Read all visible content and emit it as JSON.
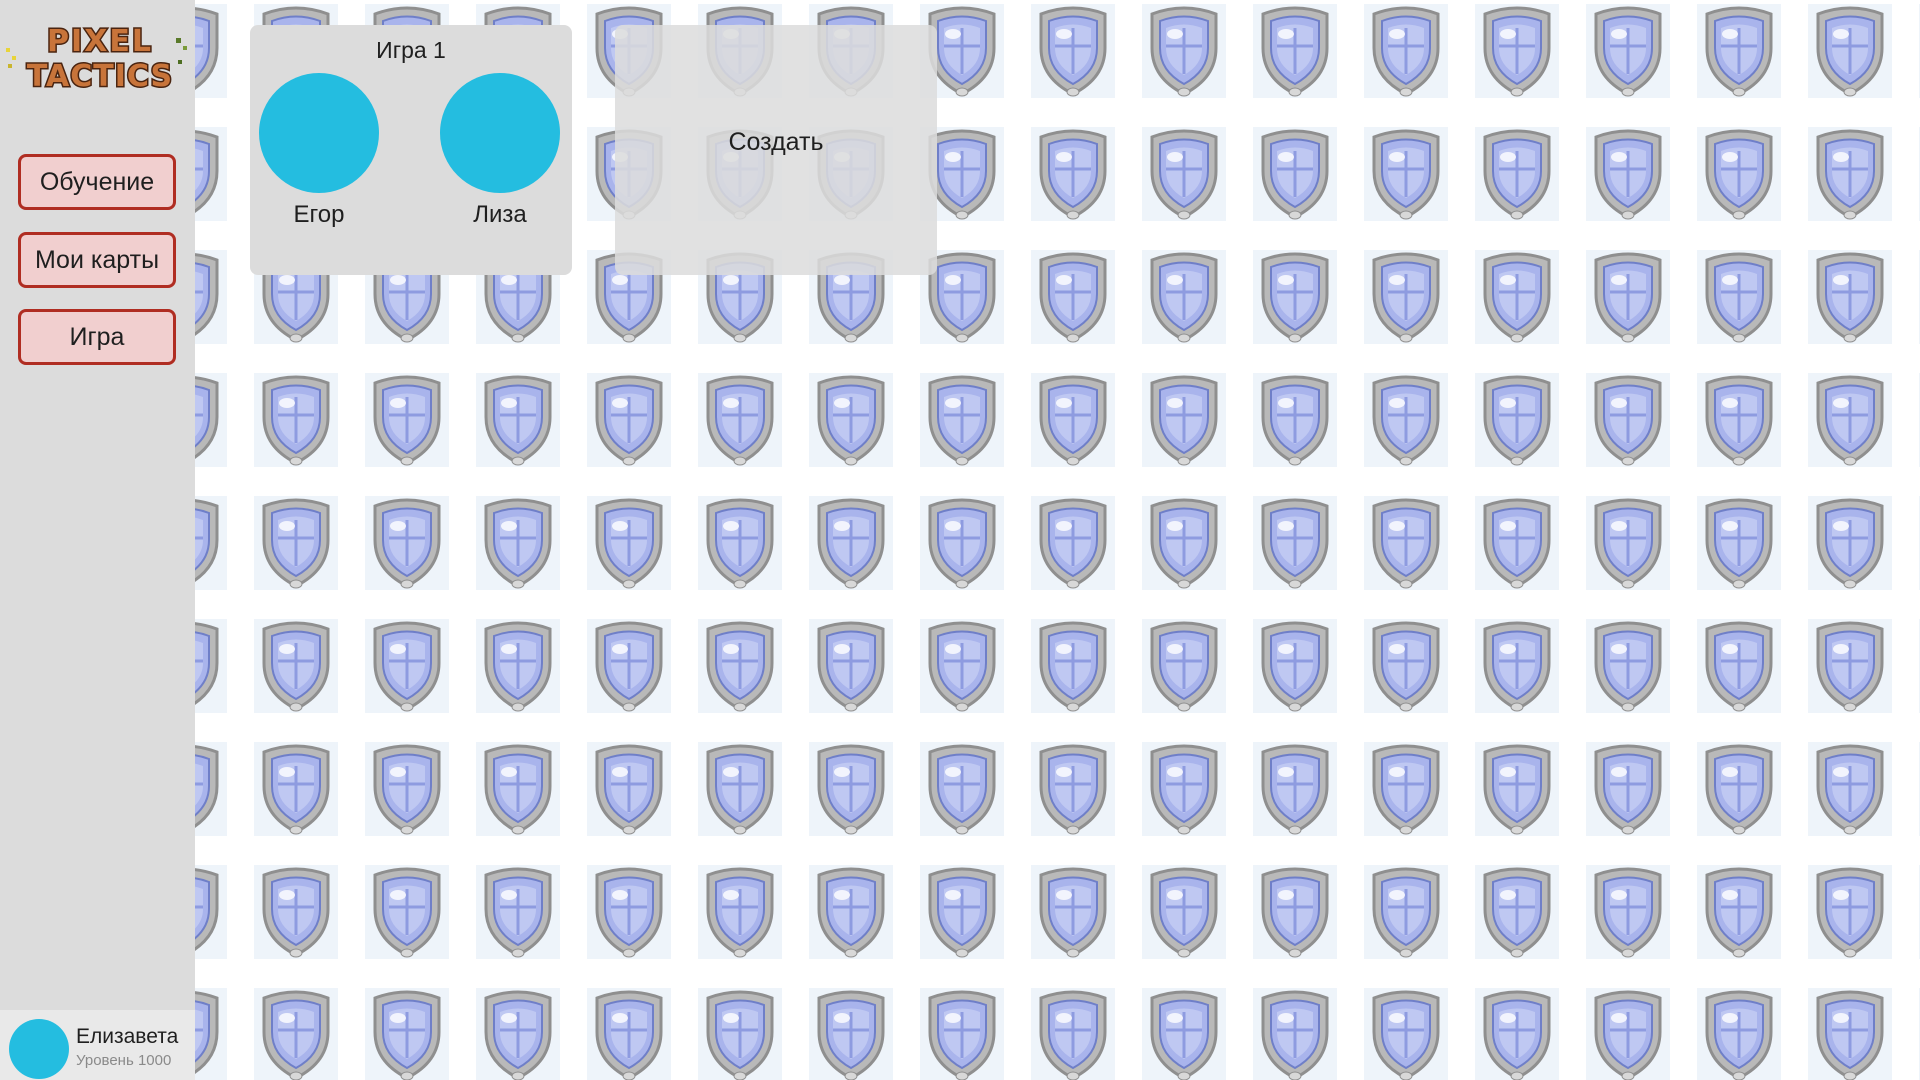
{
  "app": {
    "logo_text_line1": "PIXEL",
    "logo_text_line2": "TACTICS",
    "background_icon": "shield-icon"
  },
  "sidebar": {
    "items": [
      {
        "label": "Обучение"
      },
      {
        "label": "Мои карты"
      },
      {
        "label": "Игра"
      }
    ]
  },
  "profile": {
    "name": "Елизавета",
    "level": "Уровень 1000"
  },
  "game": {
    "title": "Игра 1",
    "players": [
      {
        "name": "Егор"
      },
      {
        "name": "Лиза"
      }
    ]
  },
  "create": {
    "label": "Создать"
  },
  "colors": {
    "sidebar_bg": "#dcdcdc",
    "button_border": "#b02d22",
    "button_bg": "#f1cfcf",
    "avatar": "#24bde0",
    "shield_fill": "#a9b4ec",
    "shield_rim": "#8f8f8f"
  }
}
